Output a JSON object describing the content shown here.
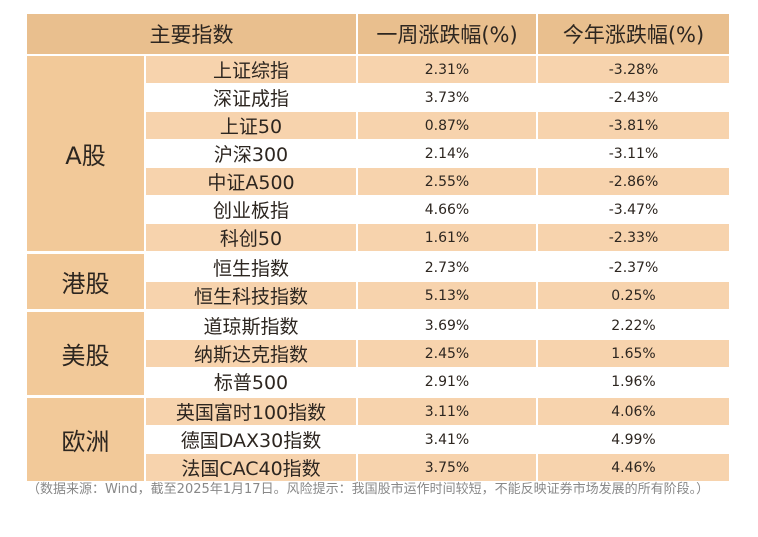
{
  "table": {
    "headers": [
      "主要指数",
      "一周涨跌幅(%)",
      "今年涨跌幅(%)"
    ],
    "groups": [
      {
        "name": "A股",
        "rows": [
          {
            "index": "上证综指",
            "week": "2.31%",
            "ytd": "-3.28%"
          },
          {
            "index": "深证成指",
            "week": "3.73%",
            "ytd": "-2.43%"
          },
          {
            "index": "上证50",
            "week": "0.87%",
            "ytd": "-3.81%"
          },
          {
            "index": "沪深300",
            "week": "2.14%",
            "ytd": "-3.11%"
          },
          {
            "index": "中证A500",
            "week": "2.55%",
            "ytd": "-2.86%"
          },
          {
            "index": "创业板指",
            "week": "4.66%",
            "ytd": "-3.47%"
          },
          {
            "index": "科创50",
            "week": "1.61%",
            "ytd": "-2.33%"
          }
        ]
      },
      {
        "name": "港股",
        "rows": [
          {
            "index": "恒生指数",
            "week": "2.73%",
            "ytd": "-2.37%"
          },
          {
            "index": "恒生科技指数",
            "week": "5.13%",
            "ytd": "0.25%"
          }
        ]
      },
      {
        "name": "美股",
        "rows": [
          {
            "index": "道琼斯指数",
            "week": "3.69%",
            "ytd": "2.22%"
          },
          {
            "index": "纳斯达克指数",
            "week": "2.45%",
            "ytd": "1.65%"
          },
          {
            "index": "标普500",
            "week": "2.91%",
            "ytd": "1.96%"
          }
        ]
      },
      {
        "name": "欧洲",
        "rows": [
          {
            "index": "英国富时100指数",
            "week": "3.11%",
            "ytd": "4.06%"
          },
          {
            "index": "德国DAX30指数",
            "week": "3.41%",
            "ytd": "4.99%"
          },
          {
            "index": "法国CAC40指数",
            "week": "3.75%",
            "ytd": "4.46%"
          }
        ]
      }
    ]
  },
  "note": "（数据来源：Wind，截至2025年1月17日。风险提示：我国股市运作时间较短，不能反映证券市场发展的所有阶段。）"
}
